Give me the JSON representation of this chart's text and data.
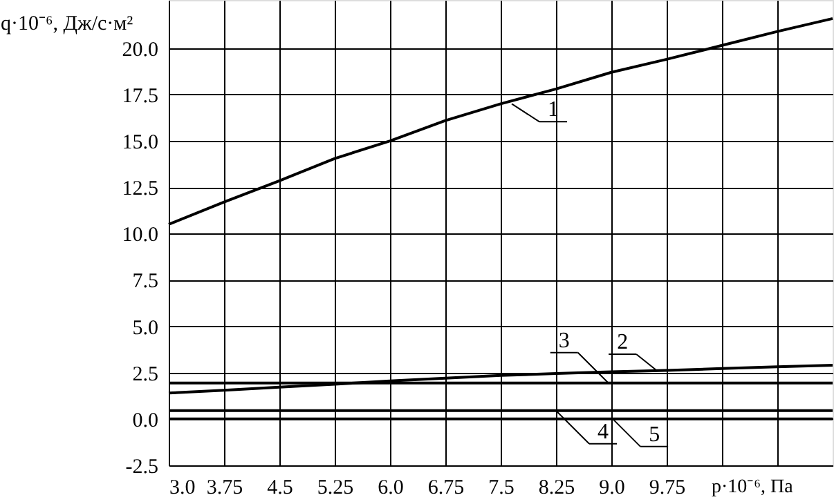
{
  "chart_data": {
    "type": "line",
    "xlabel": "p·10⁻⁶, Па",
    "ylabel": "q·10⁻⁶, Дж/с·м²",
    "xlim": [
      3,
      12
    ],
    "ylim": [
      -2.5,
      22.6
    ],
    "xticks": [
      {
        "value": 3,
        "label": "3.0"
      },
      {
        "value": 3.75,
        "label": "3.75"
      },
      {
        "value": 4.5,
        "label": "4.5"
      },
      {
        "value": 5.25,
        "label": "5.25"
      },
      {
        "value": 6,
        "label": "6.0"
      },
      {
        "value": 6.75,
        "label": "6.75"
      },
      {
        "value": 7.5,
        "label": "7.5"
      },
      {
        "value": 8.25,
        "label": "8.25"
      },
      {
        "value": 9,
        "label": "9.0"
      },
      {
        "value": 9.75,
        "label": "9.75"
      },
      {
        "value": 10.5,
        "label": null
      },
      {
        "value": 11.25,
        "label": null
      }
    ],
    "yticks": [
      {
        "value": -2.5,
        "label": "-2.5"
      },
      {
        "value": 0,
        "label": "0.0"
      },
      {
        "value": 2.5,
        "label": "2.5"
      },
      {
        "value": 5,
        "label": "5.0"
      },
      {
        "value": 7.5,
        "label": "7.5"
      },
      {
        "value": 10,
        "label": "10.0"
      },
      {
        "value": 12.5,
        "label": "12.5"
      },
      {
        "value": 15,
        "label": "15.0"
      },
      {
        "value": 17.5,
        "label": "17.5"
      },
      {
        "value": 20,
        "label": "20.0"
      }
    ],
    "grid": true,
    "marker": "none",
    "line_style": "solid",
    "x": [
      3,
      3.75,
      4.5,
      5.25,
      6,
      6.75,
      7.5,
      8.25,
      9,
      9.75,
      10.5,
      11.25,
      12
    ],
    "series": [
      {
        "color": "#000000",
        "values": [
          10.5,
          11.7,
          12.85,
          14.05,
          15.0,
          16.1,
          17.0,
          17.8,
          18.7,
          19.4,
          20.15,
          20.9,
          21.6
        ]
      },
      {
        "color": "#000000",
        "values": [
          1.4,
          1.55,
          1.72,
          1.88,
          2.05,
          2.2,
          2.35,
          2.45,
          2.55,
          2.62,
          2.72,
          2.82,
          2.9
        ]
      },
      {
        "color": "#000000",
        "values": [
          1.94,
          1.94,
          1.94,
          1.94,
          1.94,
          1.94,
          1.94,
          1.94,
          1.94,
          1.94,
          1.94,
          1.94,
          1.94
        ]
      },
      {
        "color": "#000000",
        "values": [
          0.45,
          0.45,
          0.45,
          0.45,
          0.45,
          0.45,
          0.45,
          0.45,
          0.45,
          0.45,
          0.45,
          0.45,
          0.45
        ]
      },
      {
        "color": "#000000",
        "values": [
          0.0,
          0.0,
          0.0,
          0.0,
          0.0,
          0.0,
          0.0,
          0.0,
          0.0,
          0.0,
          0.0,
          0.0,
          0.0
        ]
      }
    ],
    "annotations": [
      {
        "text": "1",
        "x": 7.65,
        "y": 17.0
      },
      {
        "text": "2",
        "x": 9.62,
        "y": 2.6
      },
      {
        "text": "3",
        "x": 8.96,
        "y": 1.94
      },
      {
        "text": "4",
        "x": 8.25,
        "y": 0.45
      },
      {
        "text": "5",
        "x": 9.02,
        "y": 0.0
      }
    ]
  }
}
